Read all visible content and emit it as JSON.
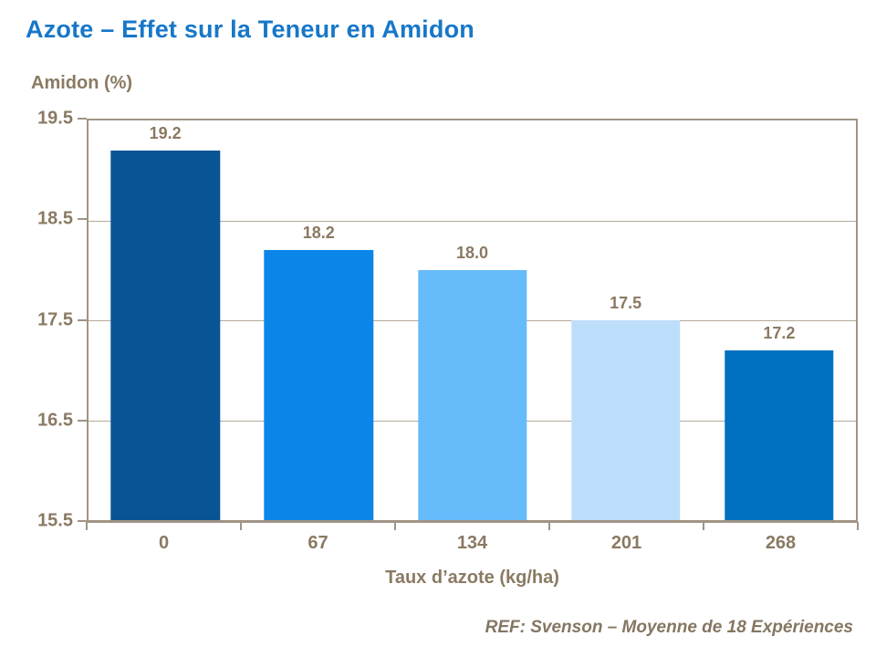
{
  "chart_data": {
    "type": "bar",
    "title": "Azote – Effet sur la Teneur en Amidon",
    "ylabel": "Amidon (%)",
    "xlabel": "Taux d’azote (kg/ha)",
    "categories": [
      "0",
      "67",
      "134",
      "201",
      "268"
    ],
    "values": [
      19.2,
      18.2,
      18.0,
      17.5,
      17.2
    ],
    "value_labels": [
      "19.2",
      "18.2",
      "18.0",
      "17.5",
      "17.2"
    ],
    "bar_colors": [
      "#095494",
      "#0b86e8",
      "#66bbfa",
      "#bddefb",
      "#0070c0"
    ],
    "yticks": [
      "19.5",
      "18.5",
      "17.5",
      "16.5",
      "15.5"
    ],
    "ylim": [
      15.5,
      19.5
    ],
    "grid": true,
    "legend": false
  },
  "footer": {
    "ref_text": "REF: Svenson – Moyenne de 18 Expériences"
  },
  "colors": {
    "title_blue": "#1777c8",
    "label_taupe": "#8a7a63",
    "footer_taupe": "#857662",
    "axis_frame": "#a09484",
    "gridline": "#b5a997",
    "background": "#ffffff",
    "bar_0": "#095494",
    "bar_67": "#0b86e8",
    "bar_134": "#66bbfa",
    "bar_201": "#bddefb",
    "bar_268": "#0070c0"
  }
}
